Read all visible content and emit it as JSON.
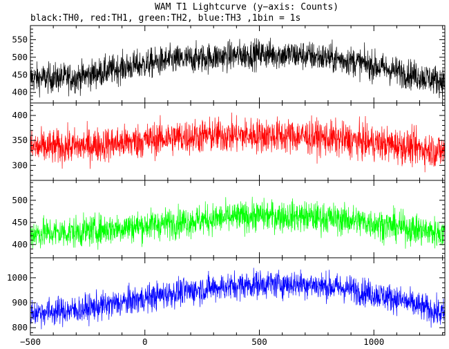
{
  "chart_data": {
    "type": "line",
    "title": "WAM T1 Lightcurve (y−axis: Counts)",
    "subtitle": "black:TH0, red:TH1, green:TH2, blue:TH3 ,1bin = 1s",
    "xlim": [
      -500,
      1310
    ],
    "x_ticks": [
      -500,
      0,
      500,
      1000
    ],
    "x_tick_labels": [
      "−500",
      "0",
      "500",
      "1000"
    ],
    "grid": false,
    "series": [
      {
        "name": "TH0",
        "color": "#000000",
        "ylim": [
          370,
          590
        ],
        "y_ticks": [
          400,
          450,
          500,
          550
        ],
        "x": [
          -500,
          -300,
          -100,
          100,
          300,
          500,
          700,
          900,
          1100,
          1300
        ],
        "values": [
          440,
          442,
          470,
          490,
          500,
          510,
          505,
          490,
          460,
          432
        ],
        "noise": 30
      },
      {
        "name": "TH1",
        "color": "#ff0000",
        "ylim": [
          270,
          425
        ],
        "y_ticks": [
          300,
          350,
          400
        ],
        "x": [
          -500,
          -300,
          -100,
          100,
          300,
          500,
          700,
          900,
          1100,
          1300
        ],
        "values": [
          335,
          338,
          345,
          355,
          360,
          360,
          358,
          350,
          340,
          328
        ],
        "noise": 25
      },
      {
        "name": "TH2",
        "color": "#00ff00",
        "ylim": [
          370,
          545
        ],
        "y_ticks": [
          400,
          450,
          500
        ],
        "x": [
          -500,
          -300,
          -100,
          100,
          300,
          500,
          700,
          900,
          1100,
          1300
        ],
        "values": [
          425,
          428,
          438,
          448,
          458,
          465,
          463,
          455,
          440,
          425
        ],
        "noise": 25
      },
      {
        "name": "TH3",
        "color": "#0000ff",
        "ylim": [
          770,
          1080
        ],
        "y_ticks": [
          800,
          900,
          1000
        ],
        "x": [
          -500,
          -300,
          -100,
          100,
          300,
          500,
          700,
          900,
          1100,
          1300
        ],
        "values": [
          860,
          870,
          900,
          935,
          960,
          975,
          975,
          955,
          915,
          855
        ],
        "noise": 40
      }
    ]
  }
}
